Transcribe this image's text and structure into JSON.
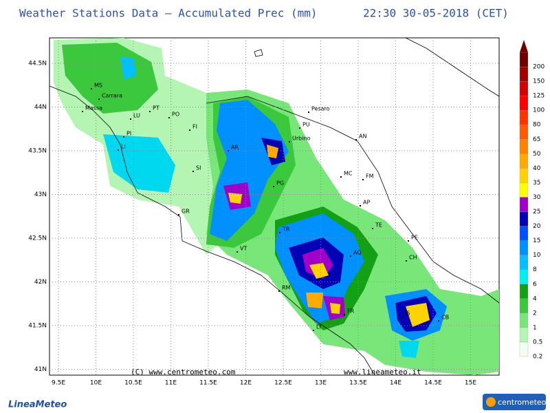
{
  "header": {
    "title": "Weather Stations Data — Accumulated Prec (mm)",
    "timestamp": "22:30 30-05-2018 (CET)"
  },
  "map": {
    "lon_labels": [
      "9.5E",
      "10E",
      "10.5E",
      "11E",
      "11.5E",
      "12E",
      "12.5E",
      "13E",
      "13.5E",
      "14E",
      "14.5E",
      "15E"
    ],
    "lat_labels": [
      "44.5N",
      "44N",
      "43.5N",
      "43N",
      "42.5N",
      "42N",
      "41.5N",
      "41N"
    ],
    "cities": [
      "MS",
      "Carrara",
      "Massa",
      "LU",
      "PT",
      "PO",
      "FI",
      "PI",
      "LI",
      "SI",
      "GR",
      "AR",
      "Pesaro",
      "PU",
      "Urbino",
      "AN",
      "MC",
      "FM",
      "PG",
      "AP",
      "TE",
      "TR",
      "PE",
      "VT",
      "CH",
      "AQ",
      "RM",
      "FR",
      "IS",
      "CB",
      "LT"
    ]
  },
  "legend": {
    "labels": [
      "0.2",
      "0.5",
      "1",
      "2",
      "4",
      "6",
      "8",
      "10",
      "15",
      "20",
      "25",
      "30",
      "35",
      "40",
      "50",
      "65",
      "80",
      "100",
      "125",
      "150",
      "200"
    ],
    "colors": [
      "#f0fff0",
      "#b4f5b4",
      "#78e678",
      "#3cc83c",
      "#14a014",
      "#00f0f0",
      "#00c0ff",
      "#0090ff",
      "#0050ff",
      "#0000b4",
      "#a000c8",
      "#ffff00",
      "#ffd200",
      "#ffaa00",
      "#ff8200",
      "#ff5a00",
      "#ff3200",
      "#ff0000",
      "#d20000",
      "#a00000",
      "#700000"
    ]
  },
  "credits": {
    "left": "(C) www.centrometeo.com",
    "right": "www.lineameteo.it"
  },
  "logos": {
    "left": "LineaMeteo",
    "right": "centrometeo"
  }
}
